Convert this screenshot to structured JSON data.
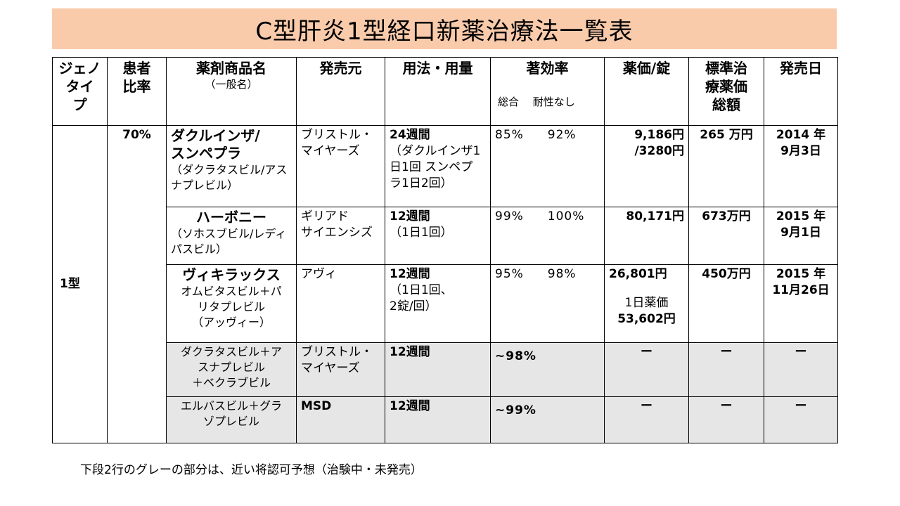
{
  "title": "C型肝炎1型経口新薬治療法一覧表",
  "headers": {
    "genotype": [
      "ジェノ",
      "タイ",
      "プ"
    ],
    "patient_ratio": [
      "患者",
      "比率"
    ],
    "drug_name": "薬剤商品名",
    "drug_name_sub": "（一般名）",
    "manufacturer": "発売元",
    "dosage": "用法・用量",
    "efficacy": "著効率",
    "efficacy_sub": "総合　 耐性なし",
    "price": "薬価/錠",
    "standard_total": [
      "標準治",
      "療薬価",
      "総額"
    ],
    "release_date": "発売日"
  },
  "genotype_value": "1型",
  "patient_ratio_value": "70%",
  "rows": [
    {
      "drug_bold": [
        "ダクルインザ/",
        "スンペプラ"
      ],
      "drug_generic": [
        "（ダクラタスビル/アス",
        "ナプレビル）"
      ],
      "manufacturer": [
        "ブリストル・",
        "マイヤーズ"
      ],
      "dosage": [
        "24週間",
        "（ダクルインザ1",
        "日1回 スンペプ",
        "ラ1日2回）"
      ],
      "eff_total": "85%",
      "eff_noresist": "92%",
      "price": [
        "9,186円",
        "/3280円"
      ],
      "total": "265 万円",
      "date": [
        "2014 年",
        "9月3日"
      ]
    },
    {
      "drug_bold": [
        "ハーボニー"
      ],
      "drug_generic": [
        "（ソホスブビル/レディ",
        "パスビル）"
      ],
      "manufacturer": [
        "ギリアド",
        "サイエンシズ"
      ],
      "dosage": [
        "12週間",
        "（1日1回）"
      ],
      "eff_total": "99%",
      "eff_noresist": "100%",
      "price": [
        "80,171円"
      ],
      "total": "673万円",
      "date": [
        "2015 年",
        "9月1日"
      ]
    },
    {
      "drug_bold": [
        "ヴィキラックス"
      ],
      "drug_generic": [
        "オムビタスビル＋パ",
        "リタプレビル",
        "（アッヴィー）"
      ],
      "manufacturer": [
        "アヴィ"
      ],
      "dosage": [
        "12週間",
        "（1日1回、",
        "2錠/回）"
      ],
      "eff_total": "95%",
      "eff_noresist": "98%",
      "price": [
        "26,801円",
        "",
        "1日薬価",
        "53,602円"
      ],
      "total": "450万円",
      "date": [
        "2015 年",
        "11月26日"
      ]
    },
    {
      "drug_plain": [
        "ダクラタスビル＋ア",
        "スナプレビル",
        "＋ベクラブビル"
      ],
      "manufacturer": [
        "ブリストル・",
        "マイヤーズ"
      ],
      "dosage": [
        "12週間"
      ],
      "eff_total": "~98%",
      "price": "ー",
      "total": "ー",
      "date": "ー"
    },
    {
      "drug_plain": [
        "エルバスビル＋グラ",
        "ゾプレビル"
      ],
      "manufacturer": [
        "MSD"
      ],
      "dosage": [
        "12週間"
      ],
      "eff_total": "~99%",
      "price": "ー",
      "total": "ー",
      "date": "ー"
    }
  ],
  "footnote": "下段2行のグレーの部分は、近い将認可予想（治験中・未発売）",
  "colors": {
    "title_bg": "#f9cbab",
    "gray_row": "#e6e6e6"
  }
}
